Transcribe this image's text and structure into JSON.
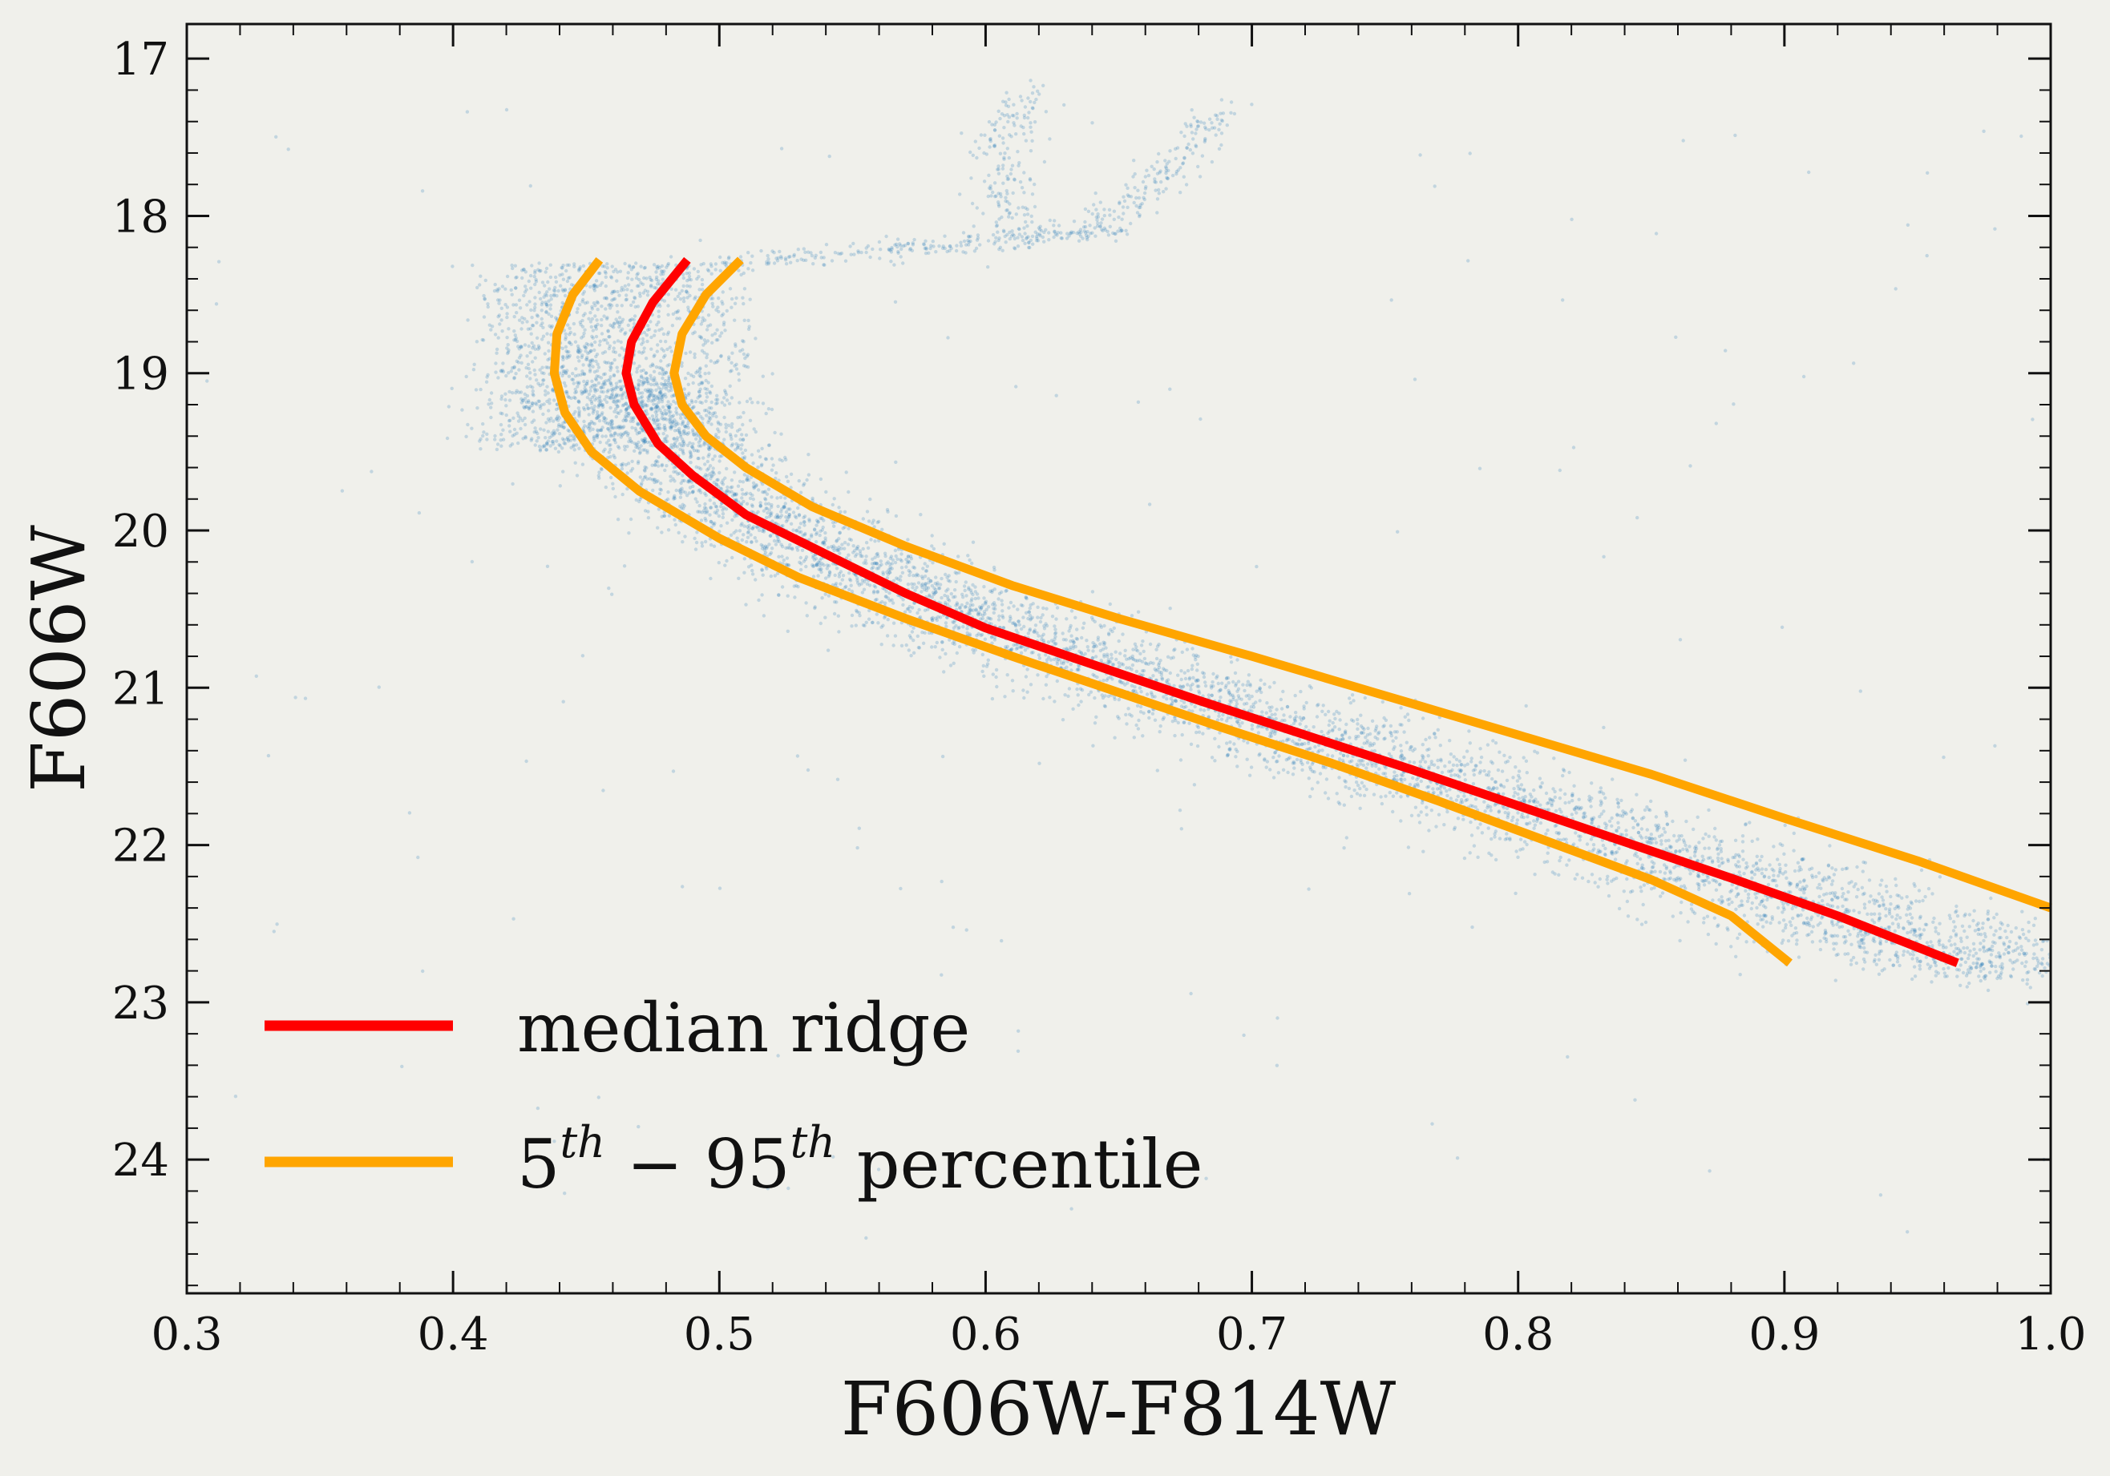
{
  "chart_data": {
    "type": "scatter",
    "xlabel": "F606W-F814W",
    "ylabel": "F606W",
    "xlim": [
      0.3,
      1.0
    ],
    "ylim": [
      24.85,
      16.78
    ],
    "y_inverted": true,
    "xticks": [
      0.3,
      0.4,
      0.5,
      0.6,
      0.7,
      0.8,
      0.9,
      1.0
    ],
    "xtick_labels": [
      "0.3",
      "0.4",
      "0.5",
      "0.6",
      "0.7",
      "0.8",
      "0.9",
      "1.0"
    ],
    "yticks": [
      17,
      18,
      19,
      20,
      21,
      22,
      23,
      24
    ],
    "ytick_labels": [
      "17",
      "18",
      "19",
      "20",
      "21",
      "22",
      "23",
      "24"
    ],
    "grid": false,
    "legend_position": "bottom-left",
    "colors": {
      "background": "#f0f0eb",
      "scatter": "#1f77b4",
      "median": "#ff0000",
      "percentile": "#ffa500"
    },
    "series": [
      {
        "name": "median ridge",
        "kind": "line",
        "color": "#ff0000",
        "points": [
          [
            0.488,
            18.28
          ],
          [
            0.475,
            18.55
          ],
          [
            0.467,
            18.8
          ],
          [
            0.465,
            19.0
          ],
          [
            0.468,
            19.2
          ],
          [
            0.477,
            19.45
          ],
          [
            0.49,
            19.65
          ],
          [
            0.51,
            19.9
          ],
          [
            0.54,
            20.15
          ],
          [
            0.57,
            20.4
          ],
          [
            0.6,
            20.62
          ],
          [
            0.64,
            20.85
          ],
          [
            0.68,
            21.08
          ],
          [
            0.72,
            21.3
          ],
          [
            0.76,
            21.52
          ],
          [
            0.8,
            21.75
          ],
          [
            0.84,
            21.98
          ],
          [
            0.88,
            22.21
          ],
          [
            0.92,
            22.45
          ],
          [
            0.965,
            22.75
          ]
        ]
      },
      {
        "name": "5th - 95th percentile",
        "kind": "line",
        "color": "#ffa500",
        "points": [
          [
            0.455,
            18.28
          ],
          [
            0.445,
            18.5
          ],
          [
            0.439,
            18.75
          ],
          [
            0.438,
            19.0
          ],
          [
            0.442,
            19.25
          ],
          [
            0.452,
            19.5
          ],
          [
            0.47,
            19.75
          ],
          [
            0.5,
            20.05
          ],
          [
            0.53,
            20.3
          ],
          [
            0.57,
            20.56
          ],
          [
            0.61,
            20.8
          ],
          [
            0.65,
            21.03
          ],
          [
            0.69,
            21.26
          ],
          [
            0.73,
            21.48
          ],
          [
            0.77,
            21.72
          ],
          [
            0.81,
            21.97
          ],
          [
            0.85,
            22.22
          ],
          [
            0.88,
            22.45
          ],
          [
            0.902,
            22.75
          ]
        ]
      },
      {
        "name": "",
        "kind": "line",
        "color": "#ffa500",
        "points": [
          [
            0.508,
            18.28
          ],
          [
            0.495,
            18.5
          ],
          [
            0.486,
            18.75
          ],
          [
            0.483,
            19.0
          ],
          [
            0.486,
            19.2
          ],
          [
            0.495,
            19.4
          ],
          [
            0.51,
            19.6
          ],
          [
            0.535,
            19.85
          ],
          [
            0.57,
            20.1
          ],
          [
            0.61,
            20.35
          ],
          [
            0.65,
            20.56
          ],
          [
            0.7,
            20.8
          ],
          [
            0.75,
            21.05
          ],
          [
            0.8,
            21.3
          ],
          [
            0.85,
            21.55
          ],
          [
            0.9,
            21.83
          ],
          [
            0.95,
            22.1
          ],
          [
            1.0,
            22.4
          ]
        ]
      }
    ],
    "scatter_trend": {
      "name": "",
      "kind": "scatter",
      "color": "#1f77b4",
      "turnoff_region": {
        "x": [
          0.42,
          0.5
        ],
        "y": [
          18.3,
          19.5
        ]
      },
      "main_sequence_ridge": [
        [
          0.465,
          19.0
        ],
        [
          0.49,
          19.65
        ],
        [
          0.54,
          20.15
        ],
        [
          0.6,
          20.62
        ],
        [
          0.68,
          21.08
        ],
        [
          0.76,
          21.52
        ],
        [
          0.84,
          21.98
        ],
        [
          0.92,
          22.45
        ],
        [
          1.0,
          22.85
        ]
      ],
      "subgiant_branch": [
        [
          0.5,
          18.3
        ],
        [
          0.56,
          18.22
        ],
        [
          0.61,
          18.15
        ],
        [
          0.64,
          18.1
        ]
      ],
      "giant_branches": [
        [
          [
            0.61,
            18.1
          ],
          [
            0.605,
            17.6
          ],
          [
            0.615,
            17.2
          ]
        ],
        [
          [
            0.64,
            18.1
          ],
          [
            0.67,
            17.7
          ],
          [
            0.69,
            17.3
          ]
        ]
      ]
    },
    "legend": [
      {
        "label": "median ridge",
        "color": "#ff0000"
      },
      {
        "label_parts": [
          "5",
          "th",
          " − 95",
          "th",
          " percentile"
        ],
        "color": "#ffa500"
      }
    ]
  }
}
